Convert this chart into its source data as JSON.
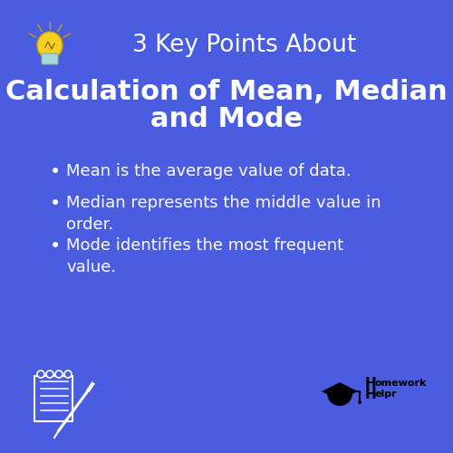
{
  "background_color": "#4a5ce0",
  "title_line1": "3 Key Points About",
  "title_line1_color": "#FFFFFF",
  "title_line1_fontsize": 19,
  "subtitle_line1": "Calculation of Mean, Median",
  "subtitle_line2": "and Mode",
  "subtitle_color": "#FFFFFF",
  "subtitle_fontsize": 22,
  "bullet_points": [
    "Mean is the average value of data.",
    "Median represents the middle value in\norder.",
    "Mode identifies the most frequent\nvalue."
  ],
  "bullet_color": "#FFFFFF",
  "bullet_fontsize": 13,
  "logo_color": "#000000"
}
